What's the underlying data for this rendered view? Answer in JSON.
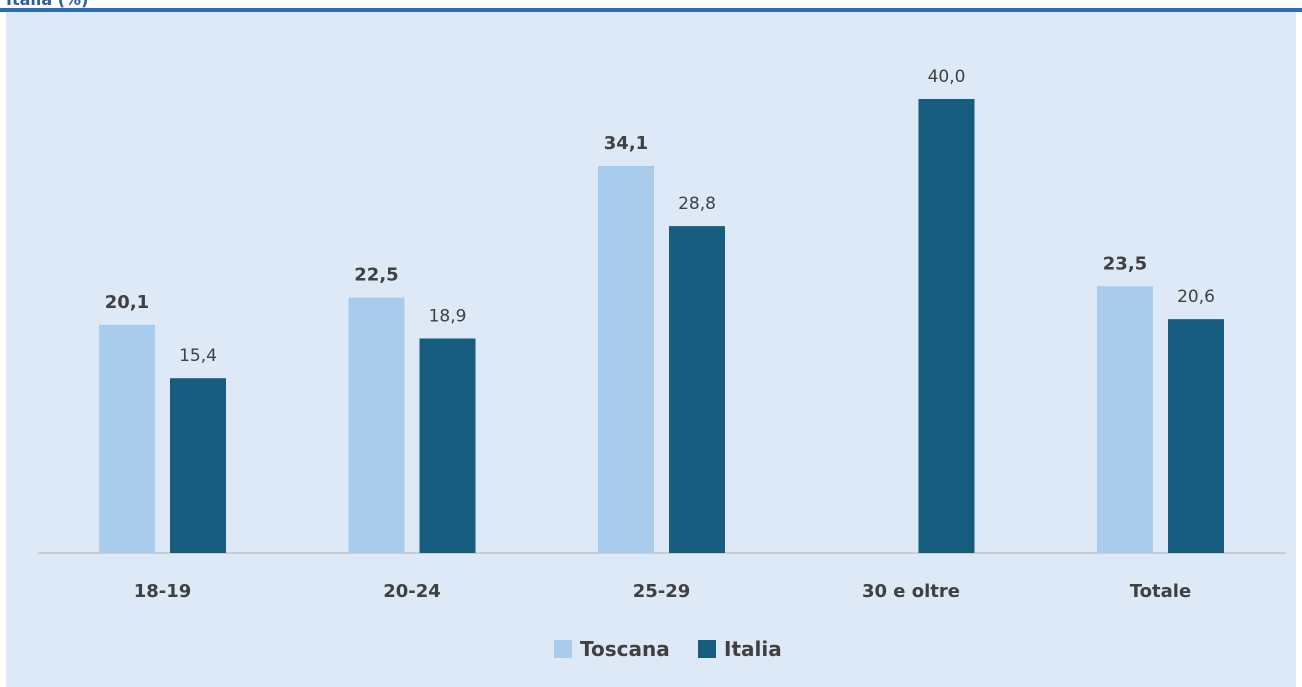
{
  "header": {
    "title_fragment": "Italia (%)"
  },
  "colors": {
    "toscana": "#a9cbec",
    "italia": "#155c7e",
    "panel_bg": "#dde9f6",
    "rule": "#2f6db0"
  },
  "chart_data": {
    "type": "bar",
    "title": "",
    "xlabel": "",
    "ylabel": "",
    "categories": [
      "18-19",
      "20-24",
      "25-29",
      "30 e oltre",
      "Totale"
    ],
    "series": [
      {
        "name": "Toscana",
        "values": [
          20.1,
          22.5,
          34.1,
          null,
          23.5
        ],
        "labels": [
          "20,1",
          "22,5",
          "34,1",
          "",
          "23,5"
        ]
      },
      {
        "name": "Italia",
        "values": [
          15.4,
          18.9,
          28.8,
          40.0,
          20.6
        ],
        "labels": [
          "15,4",
          "18,9",
          "28,8",
          "40,0",
          "20,6"
        ]
      }
    ],
    "ylim": [
      0,
      40
    ],
    "grid": false,
    "legend": "bottom-center"
  }
}
